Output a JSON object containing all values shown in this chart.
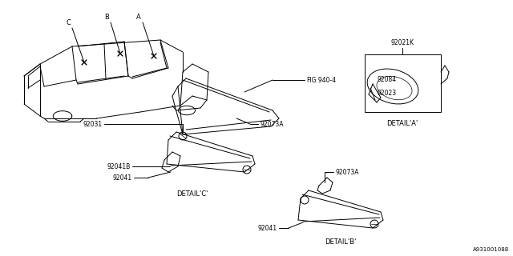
{
  "bg_color": "#ffffff",
  "fig_width": 6.4,
  "fig_height": 3.2,
  "dpi": 100,
  "labels": {
    "FIG_940_4": "FIG.940-4",
    "92073A": "92073A",
    "92031": "92031",
    "92041B": "92041B",
    "92041": "92041",
    "92021K": "92021K",
    "92084": "92084",
    "92023": "92023",
    "detail_a": "DETAIL'A'",
    "detail_b": "DETAIL'B'",
    "detail_c": "DETAIL'C'",
    "A": "A",
    "B": "B",
    "C": "C",
    "fig_code": "A931001088"
  },
  "lw": 0.7,
  "fs": 5.5,
  "fsd": 6.0
}
